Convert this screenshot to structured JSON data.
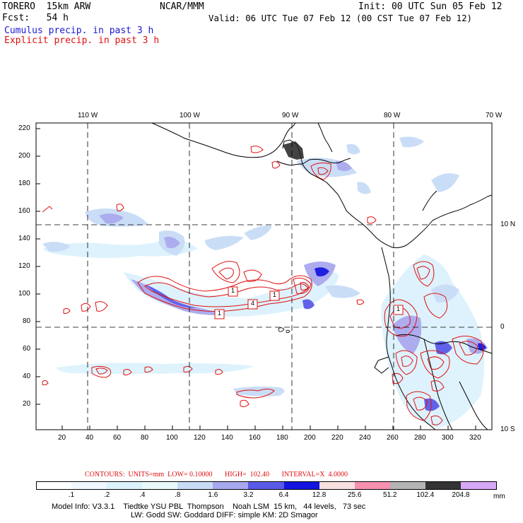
{
  "header": {
    "model": "TORERO  15km ARW",
    "center": "NCAR/MMM",
    "init": "Init: 00 UTC Sun 05 Feb 12",
    "fcst": "Fcst:   54 h",
    "valid": "Valid: 06 UTC Tue 07 Feb 12 (00 CST Tue 07 Feb 12)",
    "cumulus": "Cumulus precip. in past 3 h",
    "explicit": "Explicit precip. in past 3 h"
  },
  "map": {
    "lon_labels": [
      "110 W",
      "100 W",
      "90 W",
      "80 W",
      "70 W"
    ],
    "lat_labels": [
      "10 N",
      "0",
      "10 S"
    ],
    "y_ticks": [
      "220",
      "200",
      "180",
      "160",
      "140",
      "120",
      "100",
      "80",
      "60",
      "40",
      "20"
    ],
    "x_ticks": [
      "20",
      "40",
      "60",
      "80",
      "100",
      "120",
      "140",
      "160",
      "180",
      "200",
      "220",
      "240",
      "260",
      "280",
      "300",
      "320"
    ],
    "box_labels": [
      "1",
      "1",
      "4",
      "1",
      "1"
    ]
  },
  "contours": {
    "text": "CONTOURS:  UNITS=mm  LOW= 0.10000       HIGH=  102.40       INTERVAL=X  4.0000"
  },
  "legend": {
    "unit": "mm",
    "tick_labels": [
      ".1",
      ".2",
      ".4",
      ".8",
      "1.6",
      "3.2",
      "6.4",
      "12.8",
      "25.6",
      "51.2",
      "102.4",
      "204.8"
    ],
    "colors": [
      "#ffffff",
      "#eef8fe",
      "#dcf2fc",
      "#eafafb",
      "#c8dcf6",
      "#a8a8ee",
      "#5a5ae8",
      "#1414e0",
      "#f8e0e0",
      "#f890b0",
      "#b4b4b4",
      "#333333",
      "#d8a8f8"
    ]
  },
  "model_info": {
    "line1": "Model Info: V3.3.1    Tiedtke YSU PBL  Thompson    Noah LSM  15 km,   44 levels,   73 sec",
    "line2": "LW: Godd SW: Goddard DIFF: simple KM: 2D Smagor"
  },
  "colors": {
    "cumulus_title": "#1a1ad0",
    "explicit_title": "#e01010",
    "contour": "#e01010",
    "precip_light": "#c8dcf6",
    "precip_mid": "#5a5ae8",
    "precip_heavy": "#1414e0"
  }
}
